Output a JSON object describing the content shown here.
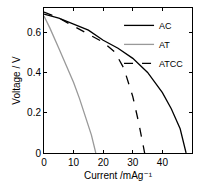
{
  "chart_data": {
    "type": "line",
    "x_label": "Current /mAg⁻¹",
    "y_label": "Voltage / V",
    "xlim": [
      0,
      50
    ],
    "xticks": [
      0,
      10,
      20,
      30,
      40
    ],
    "ylim": [
      0,
      0.72
    ],
    "yticks": [
      0,
      0.2,
      0.4,
      0.6
    ],
    "grid": false,
    "legend": "top right",
    "series": [
      {
        "name": "AC",
        "color": "#000000",
        "line_style": "solid",
        "x": [
          0,
          5,
          10,
          15,
          20,
          25,
          30,
          35,
          40,
          43,
          46,
          48
        ],
        "values": [
          0.69,
          0.67,
          0.64,
          0.61,
          0.56,
          0.52,
          0.47,
          0.4,
          0.3,
          0.22,
          0.12,
          0.0
        ]
      },
      {
        "name": "AT",
        "color": "#999999",
        "line_style": "solid",
        "x": [
          0,
          2,
          5,
          8,
          10,
          12,
          14,
          16,
          17.5
        ],
        "values": [
          0.68,
          0.62,
          0.52,
          0.42,
          0.35,
          0.27,
          0.18,
          0.09,
          0.0
        ]
      },
      {
        "name": "ATCC",
        "color": "#000000",
        "line_style": "dashed",
        "x": [
          0,
          5,
          10,
          15,
          20,
          24,
          27,
          30,
          32,
          34
        ],
        "values": [
          0.7,
          0.67,
          0.63,
          0.59,
          0.55,
          0.5,
          0.42,
          0.28,
          0.15,
          0.0
        ]
      }
    ]
  }
}
